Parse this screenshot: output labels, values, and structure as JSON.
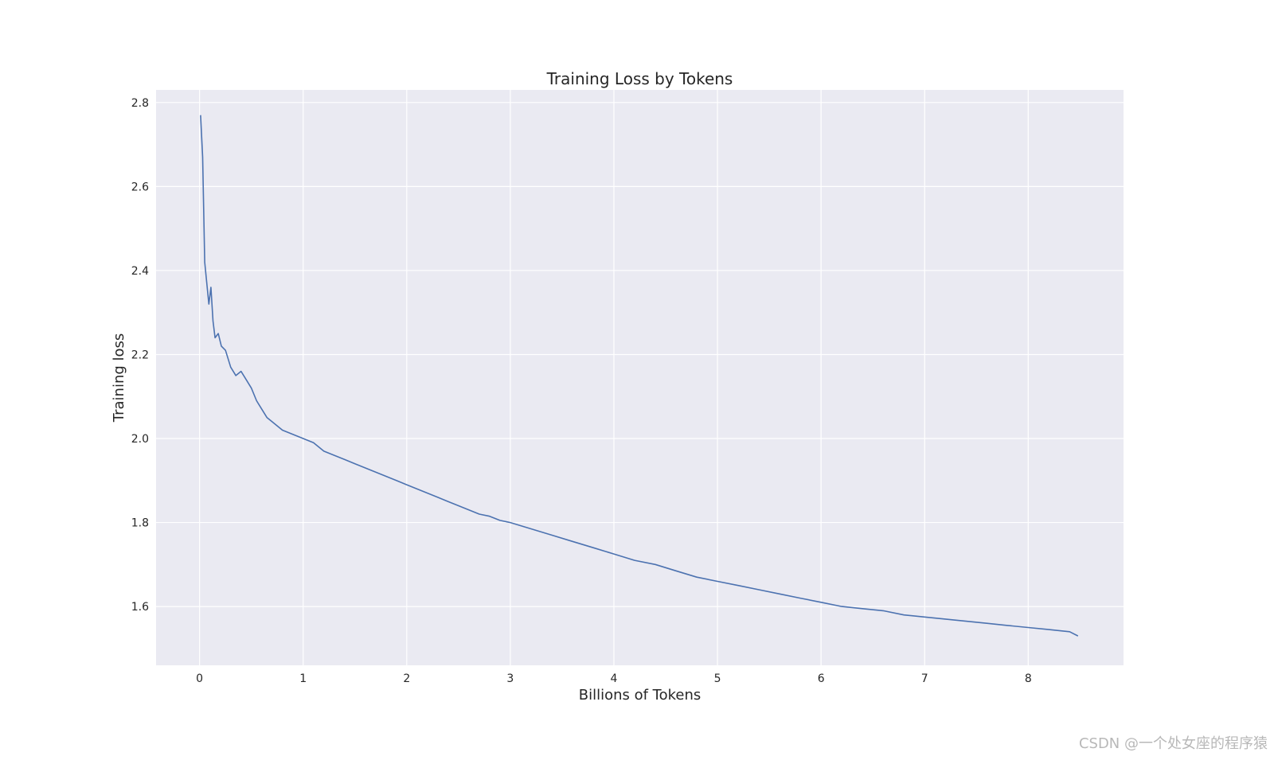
{
  "chart_data": {
    "type": "line",
    "title": "Training Loss by Tokens",
    "xlabel": "Billions of Tokens",
    "ylabel": "Training loss",
    "xlim": [
      -0.42,
      8.92
    ],
    "ylim": [
      1.46,
      2.83
    ],
    "x_ticks": [
      0,
      1,
      2,
      3,
      4,
      5,
      6,
      7,
      8
    ],
    "y_ticks": [
      1.6,
      1.8,
      2.0,
      2.2,
      2.4,
      2.6,
      2.8
    ],
    "grid": true,
    "legend": "none",
    "series": [
      {
        "color": "#4c72b0",
        "points": [
          [
            0.01,
            2.77
          ],
          [
            0.03,
            2.67
          ],
          [
            0.05,
            2.42
          ],
          [
            0.07,
            2.37
          ],
          [
            0.09,
            2.32
          ],
          [
            0.11,
            2.36
          ],
          [
            0.13,
            2.28
          ],
          [
            0.15,
            2.24
          ],
          [
            0.18,
            2.25
          ],
          [
            0.21,
            2.22
          ],
          [
            0.25,
            2.21
          ],
          [
            0.3,
            2.17
          ],
          [
            0.35,
            2.15
          ],
          [
            0.4,
            2.16
          ],
          [
            0.45,
            2.14
          ],
          [
            0.5,
            2.12
          ],
          [
            0.55,
            2.09
          ],
          [
            0.6,
            2.07
          ],
          [
            0.65,
            2.05
          ],
          [
            0.7,
            2.04
          ],
          [
            0.8,
            2.02
          ],
          [
            0.9,
            2.01
          ],
          [
            1.0,
            2.0
          ],
          [
            1.1,
            1.99
          ],
          [
            1.2,
            1.97
          ],
          [
            1.3,
            1.96
          ],
          [
            1.4,
            1.95
          ],
          [
            1.5,
            1.94
          ],
          [
            1.6,
            1.93
          ],
          [
            1.7,
            1.92
          ],
          [
            1.8,
            1.91
          ],
          [
            1.9,
            1.9
          ],
          [
            2.0,
            1.89
          ],
          [
            2.1,
            1.88
          ],
          [
            2.2,
            1.87
          ],
          [
            2.3,
            1.86
          ],
          [
            2.4,
            1.85
          ],
          [
            2.5,
            1.84
          ],
          [
            2.6,
            1.83
          ],
          [
            2.7,
            1.82
          ],
          [
            2.8,
            1.815
          ],
          [
            2.9,
            1.805
          ],
          [
            3.0,
            1.8
          ],
          [
            3.2,
            1.785
          ],
          [
            3.4,
            1.77
          ],
          [
            3.6,
            1.755
          ],
          [
            3.8,
            1.74
          ],
          [
            4.0,
            1.725
          ],
          [
            4.2,
            1.71
          ],
          [
            4.4,
            1.7
          ],
          [
            4.6,
            1.685
          ],
          [
            4.8,
            1.67
          ],
          [
            5.0,
            1.66
          ],
          [
            5.2,
            1.65
          ],
          [
            5.4,
            1.64
          ],
          [
            5.6,
            1.63
          ],
          [
            5.8,
            1.62
          ],
          [
            6.0,
            1.61
          ],
          [
            6.2,
            1.6
          ],
          [
            6.4,
            1.595
          ],
          [
            6.6,
            1.59
          ],
          [
            6.8,
            1.58
          ],
          [
            7.0,
            1.575
          ],
          [
            7.2,
            1.57
          ],
          [
            7.4,
            1.565
          ],
          [
            7.6,
            1.56
          ],
          [
            7.8,
            1.555
          ],
          [
            8.0,
            1.55
          ],
          [
            8.2,
            1.545
          ],
          [
            8.4,
            1.54
          ],
          [
            8.48,
            1.53
          ]
        ]
      }
    ]
  },
  "watermark": "CSDN @一个处女座的程序猿"
}
